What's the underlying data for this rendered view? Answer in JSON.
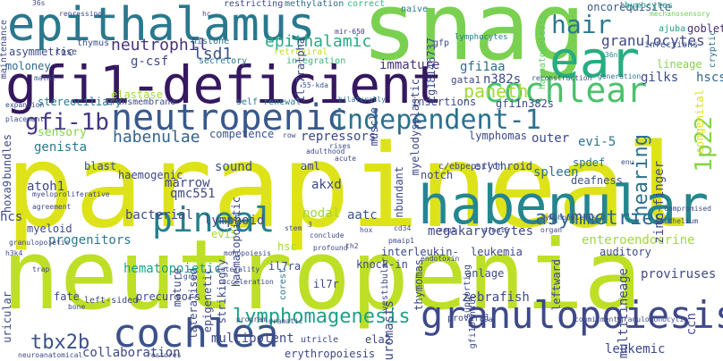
{
  "words": [
    {
      "id": "snag",
      "text": "snag",
      "color": "#7ad151"
    },
    {
      "id": "parapineal",
      "text": "parapineal",
      "color": "#dde318"
    },
    {
      "id": "neutropenia",
      "text": "neutropenia",
      "color": "#bddf26"
    },
    {
      "id": "gfi1-deficient",
      "text": "gfi1-deficient",
      "color": "#35185f"
    },
    {
      "id": "epithalamus",
      "text": "epithalamus",
      "color": "#2a788e"
    },
    {
      "id": "habenular",
      "text": "habenular",
      "color": "#24868e"
    },
    {
      "id": "neutropenic",
      "text": "neutropenic",
      "color": "#38598c"
    },
    {
      "id": "granulopoiesis",
      "text": "granulopoiesis",
      "color": "#3e4989"
    },
    {
      "id": "cochlea",
      "text": "cochlea",
      "color": "#3b518b"
    },
    {
      "id": "cochlear",
      "text": "cochlear",
      "color": "#4ac16d"
    },
    {
      "id": "independent-1",
      "text": "independent-1",
      "color": "#2c718e"
    },
    {
      "id": "ear",
      "text": "ear",
      "color": "#27ad81"
    },
    {
      "id": "pineal",
      "text": "pineal",
      "color": "#277f8e"
    },
    {
      "id": "hair",
      "text": "hair",
      "color": "#2a788e"
    },
    {
      "id": "lymphomagenesis",
      "text": "lymphomagenesis",
      "color": "#1fa088"
    },
    {
      "id": "asymmetries",
      "text": "asymmetries",
      "color": "#31688e"
    },
    {
      "id": "gfi-1b",
      "text": "gfi-1b",
      "color": "#443983"
    },
    {
      "id": "neutrophil",
      "text": "neutrophil",
      "color": "#46327e"
    },
    {
      "id": "tbx2b",
      "text": "tbx2b",
      "color": "#3b528b"
    },
    {
      "id": "1p22",
      "text": "1p22",
      "color": "#86d549"
    },
    {
      "id": "hearing",
      "text": "hearing",
      "color": "#2c728e"
    },
    {
      "id": "paneth",
      "text": "paneth",
      "color": "#a0da39"
    },
    {
      "id": "granulocytes",
      "text": "granulocytes",
      "color": "#3e4989"
    },
    {
      "id": "habenulae",
      "text": "habenulae",
      "color": "#33638d"
    },
    {
      "id": "epithalamic",
      "text": "epithalamic",
      "color": "#25ac82"
    },
    {
      "id": "lsd1",
      "text": "lsd1",
      "color": "#3b528b"
    },
    {
      "id": "pineal-2",
      "text": "hematopoietic",
      "color": "#1fa188"
    }
  ],
  "small_words": [
    "restricting",
    "methylation",
    "correct",
    "naive",
    "oncorequisite",
    "thymocytes",
    "mechanosensory",
    "goblet",
    "cryptic",
    "thymus",
    "histone",
    "retroviral",
    "mir-650",
    "gfp",
    "lymphocytes",
    "haematopoiesis",
    "36n",
    "infections",
    "ajuba",
    "moloney",
    "lose",
    "secretory",
    "integration",
    "g-csf",
    "immature",
    "gfi1aa",
    "n382s",
    "gilks",
    "hscs",
    "lineage",
    "math1",
    "elastase",
    "55-kda",
    "transmembrane",
    "self-renewal",
    "bilaterally",
    "gata1",
    "gfi1n382s",
    "insertions",
    "stereociliary",
    "reconstruction",
    "generation",
    "congenital",
    "sensory",
    "competence",
    "repressors",
    "lymphomas",
    "outer",
    "evi-5",
    "genista",
    "blast",
    "marrow",
    "sound",
    "qmc551",
    "aml",
    "notch",
    "c/ebpepsilon",
    "erythroid",
    "spleen",
    "spdef",
    "deafness",
    "bacterial",
    "lymphoid",
    "akxd",
    "zinc-finger",
    "atoh1",
    "haemogenic",
    "hcs",
    "myeloid",
    "evi5",
    "nodal",
    "aatc",
    "enteroendocrine",
    "auditory",
    "progenitors",
    "megakaryocytes",
    "hsc",
    "interleukin-",
    "leukemia",
    "endotoxin",
    "knock-in",
    "il7r",
    "il7ra",
    "corest",
    "thymomas",
    "multilineage",
    "proviruses",
    "anlage",
    "leftward",
    "precursors",
    "mature",
    "fate",
    "lateralised",
    "epigenetic",
    "multipotent",
    "collaboration",
    "ela2",
    "proviral",
    "g9a",
    "zebrafish",
    "leukemic",
    "granulomonocytic",
    "commitment",
    "restores",
    "neuroanatomical",
    "erythropoiesis",
    "utricle",
    "program",
    "dramatic",
    "maintenance",
    "asymmetric",
    "36s",
    "neuromasts",
    "ccn",
    "left-sided",
    "repressing",
    "hc",
    "3",
    "hox",
    "cd34",
    "pmaip1",
    "rag1",
    "dfna15",
    "organ",
    "conclude",
    "profound",
    "th2",
    "stem",
    "acute",
    "adulthood",
    "rises",
    "row",
    "lymphopoiesis",
    "enu",
    "epithelium",
    "compromised",
    "myeloproliferative",
    "agreement",
    "granulopoietic",
    "trap",
    "h3k4",
    "bundles",
    "hoxa9",
    "placement",
    "expansion",
    "laterality",
    "monopoiesis",
    "lgr5",
    "acceleration",
    "bone",
    "uricular",
    "muscle",
    "nbundant",
    "myelodysplastic",
    "cg18146737",
    "il-7ralpha",
    "haematopoietic",
    "strikingly",
    "supporting",
    "gfi1b-null",
    "vestibular",
    "rapidly",
    "nerve",
    "il7"
  ]
}
